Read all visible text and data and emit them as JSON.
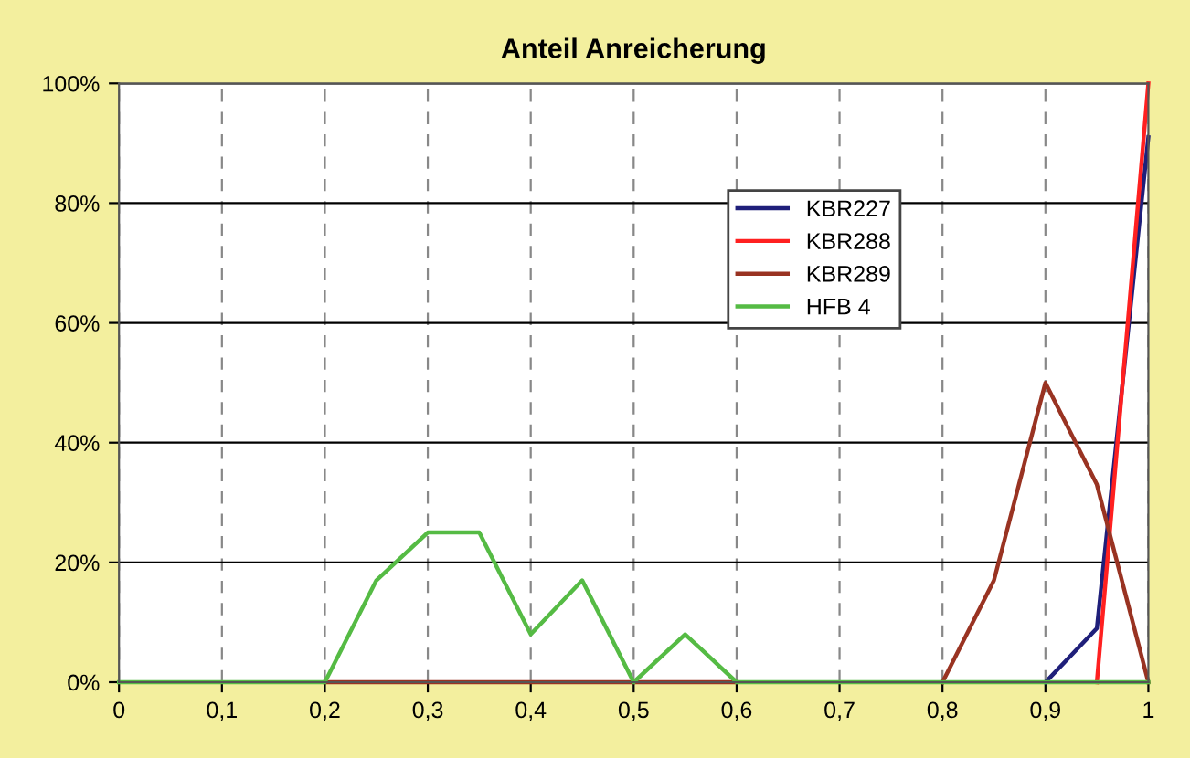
{
  "chart_data": {
    "type": "line",
    "title": "Anteil Anreicherung",
    "x": [
      0,
      0.05,
      0.1,
      0.15,
      0.2,
      0.25,
      0.3,
      0.35,
      0.4,
      0.45,
      0.5,
      0.55,
      0.6,
      0.65,
      0.7,
      0.75,
      0.8,
      0.85,
      0.9,
      0.95,
      1
    ],
    "series": [
      {
        "name": "KBR227",
        "color": "#1f1f7a",
        "values": [
          null,
          null,
          null,
          null,
          null,
          null,
          null,
          null,
          null,
          null,
          null,
          null,
          null,
          null,
          null,
          null,
          null,
          null,
          0,
          9,
          91
        ]
      },
      {
        "name": "KBR288",
        "color": "#ff2020",
        "values": [
          null,
          null,
          null,
          null,
          null,
          null,
          null,
          null,
          null,
          null,
          null,
          null,
          null,
          null,
          null,
          null,
          null,
          null,
          null,
          0,
          100
        ]
      },
      {
        "name": "KBR289",
        "color": "#993322",
        "values": [
          null,
          null,
          null,
          null,
          0,
          0,
          0,
          0,
          0,
          0,
          0,
          0,
          0,
          null,
          null,
          null,
          0,
          17,
          50,
          33,
          0
        ]
      },
      {
        "name": "HFB 4",
        "color": "#55bb44",
        "values": [
          0,
          0,
          0,
          0,
          0,
          17,
          25,
          25,
          8,
          17,
          0,
          8,
          0,
          0,
          0,
          0,
          0,
          0,
          0,
          0,
          0
        ]
      }
    ],
    "xlim": [
      0,
      1
    ],
    "xticks": [
      0,
      {
        "value": 0.1,
        "label": "0,1"
      },
      {
        "value": 0.2,
        "label": "0,2"
      },
      {
        "value": 0.3,
        "label": "0,3"
      },
      {
        "value": 0.4,
        "label": "0,4"
      },
      {
        "value": 0.5,
        "label": "0,5"
      },
      {
        "value": 0.6,
        "label": "0,6"
      },
      {
        "value": 0.7,
        "label": "0,7"
      },
      {
        "value": 0.8,
        "label": "0,8"
      },
      {
        "value": 0.9,
        "label": "0,9"
      },
      1
    ],
    "ylim": [
      0,
      100
    ],
    "yticks": [
      {
        "value": 0,
        "label": "0%"
      },
      {
        "value": 20,
        "label": "20%"
      },
      {
        "value": 40,
        "label": "40%"
      },
      {
        "value": 60,
        "label": "60%"
      },
      {
        "value": 80,
        "label": "80%"
      },
      {
        "value": 100,
        "label": "100%"
      }
    ],
    "grid": true,
    "legend": "top right",
    "marker": "none",
    "line_style": "solid"
  }
}
